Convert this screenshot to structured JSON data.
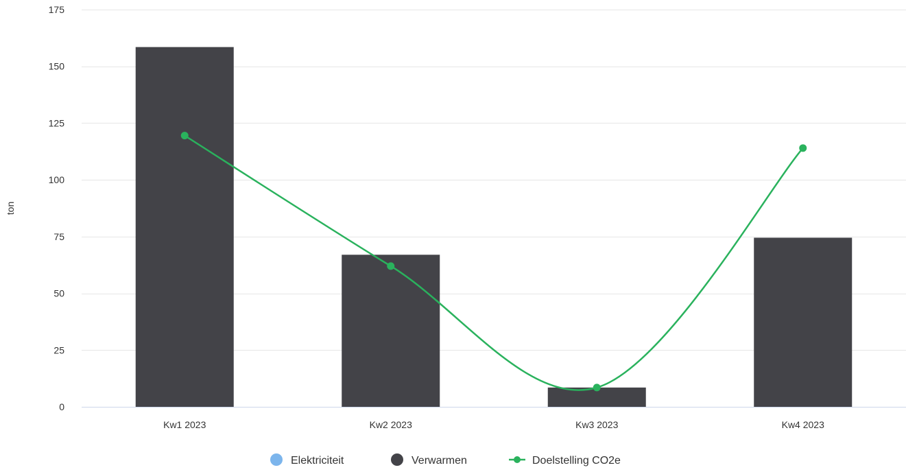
{
  "chart_data": {
    "type": "bar",
    "categories": [
      "Kw1 2023",
      "Kw2 2023",
      "Kw3 2023",
      "Kw4 2023"
    ],
    "ylabel": "ton",
    "ylim": [
      0,
      175
    ],
    "yticks": [
      0,
      25,
      50,
      75,
      100,
      125,
      150,
      175
    ],
    "grid": true,
    "legend_position": "bottom-center",
    "series": [
      {
        "name": "Elektriciteit",
        "type": "bar",
        "color": "#7cb5ec",
        "values": [
          0,
          0,
          0,
          0
        ]
      },
      {
        "name": "Verwarmen",
        "type": "bar",
        "color": "#434348",
        "values": [
          158.5,
          67,
          8.5,
          74.5
        ]
      },
      {
        "name": "Doelstelling CO2e",
        "type": "spline",
        "color": "#2ab25d",
        "values": [
          119.5,
          62,
          8.5,
          114
        ]
      }
    ]
  }
}
